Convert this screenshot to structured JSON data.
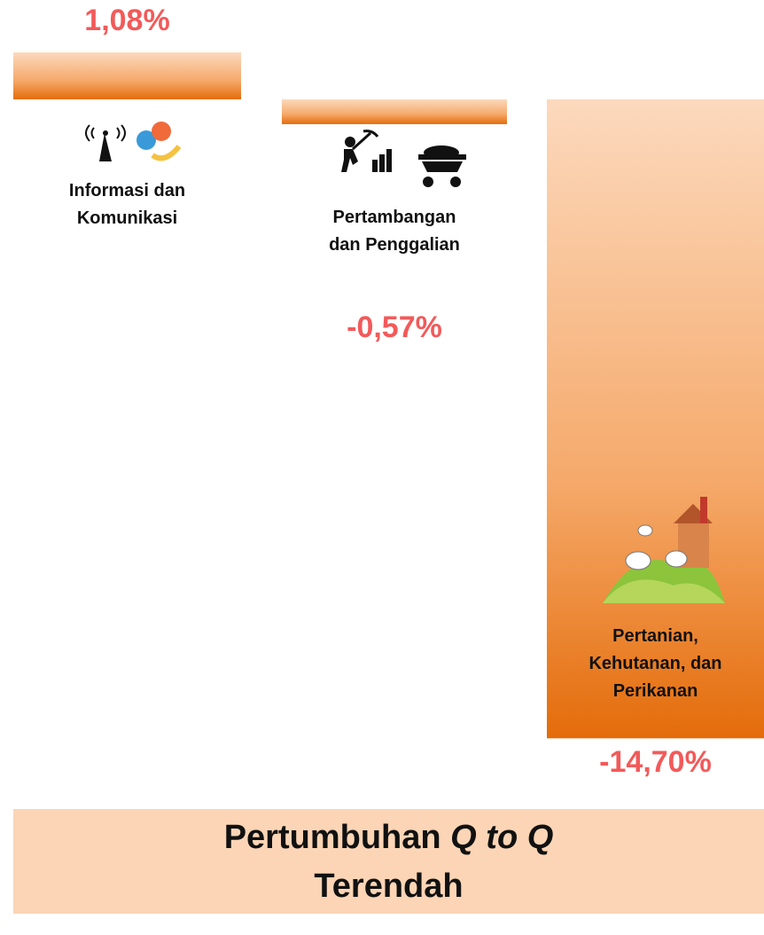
{
  "chart_data": {
    "type": "bar",
    "title": {
      "text": "Pertumbuhan",
      "italic": "Q to Q",
      "line2": "Terendah"
    },
    "categories": [
      "Informasi dan Komunikasi",
      "Pertambangan dan Penggalian",
      "Pertanian, Kehutanan, dan Perikanan"
    ],
    "values": [
      1.08,
      -0.57,
      -14.7
    ],
    "value_labels": [
      "1,08%",
      "-0,57%",
      "-14,70%"
    ],
    "color": "#e46c0a",
    "label_color": "#f25a5a"
  }
}
